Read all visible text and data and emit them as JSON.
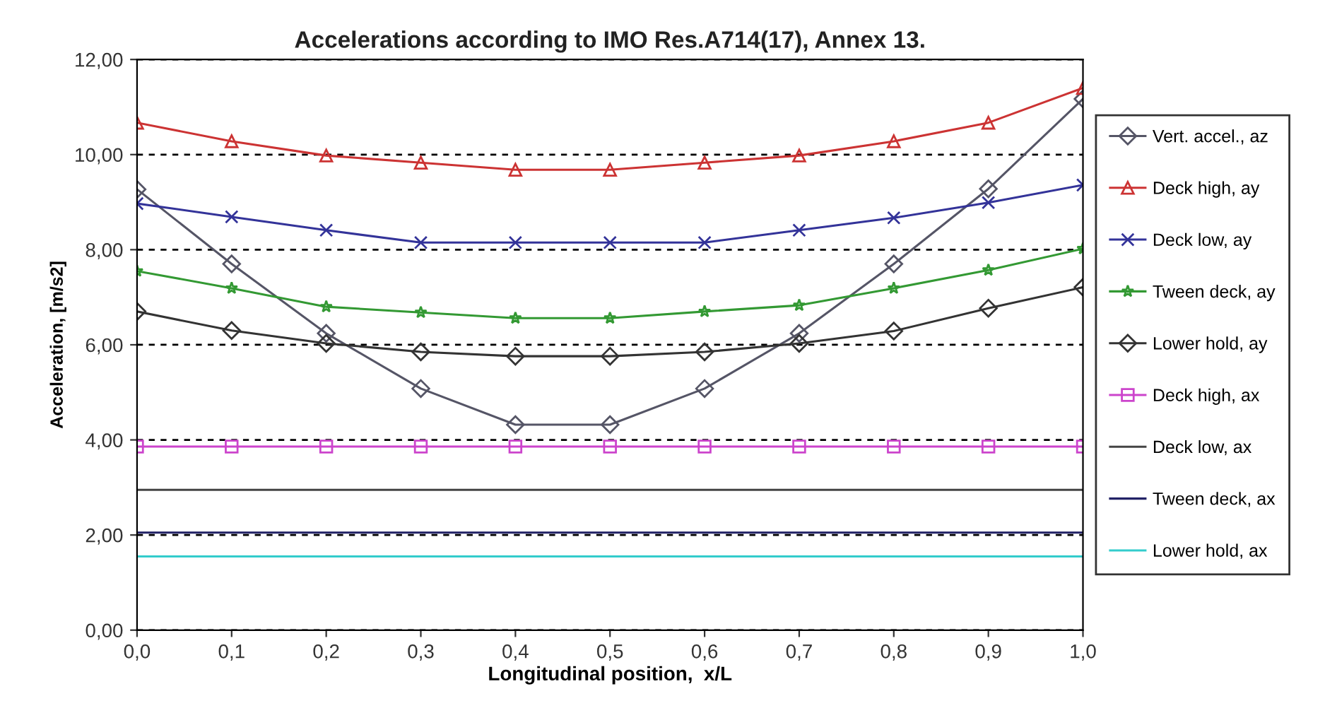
{
  "chart_data": {
    "type": "line",
    "title": "Accelerations according to IMO Res.A714(17), Annex 13.",
    "xlabel": "Longitudinal position,  x/L",
    "ylabel": "Acceleration, [m/s2]",
    "x": [
      0.0,
      0.1,
      0.2,
      0.3,
      0.4,
      0.5,
      0.6,
      0.7,
      0.8,
      0.9,
      1.0
    ],
    "series": [
      {
        "name": "Vert. accel., az",
        "color": "#555566",
        "marker": "diamond",
        "values": [
          9.27,
          7.7,
          6.24,
          5.08,
          4.32,
          4.32,
          5.08,
          6.24,
          7.7,
          9.28,
          11.17
        ]
      },
      {
        "name": "Deck high, ay",
        "color": "#cc3333",
        "marker": "triangle",
        "values": [
          10.67,
          10.28,
          9.98,
          9.83,
          9.68,
          9.68,
          9.83,
          9.98,
          10.28,
          10.67,
          11.4
        ]
      },
      {
        "name": "Deck low, ay",
        "color": "#333399",
        "marker": "cross",
        "values": [
          8.97,
          8.69,
          8.41,
          8.15,
          8.15,
          8.15,
          8.15,
          8.41,
          8.67,
          8.99,
          9.36
        ]
      },
      {
        "name": "Tween deck, ay",
        "color": "#339933",
        "marker": "star",
        "values": [
          7.55,
          7.19,
          6.8,
          6.68,
          6.56,
          6.56,
          6.7,
          6.83,
          7.19,
          7.57,
          8.02
        ]
      },
      {
        "name": "Lower hold, ay",
        "color": "#333333",
        "marker": "diamond",
        "values": [
          6.7,
          6.3,
          6.03,
          5.85,
          5.76,
          5.76,
          5.85,
          6.03,
          6.29,
          6.77,
          7.21
        ]
      },
      {
        "name": "Deck high, ax",
        "color": "#cc44cc",
        "marker": "square",
        "values": [
          3.86,
          3.86,
          3.86,
          3.86,
          3.86,
          3.86,
          3.86,
          3.86,
          3.86,
          3.86,
          3.86
        ]
      },
      {
        "name": "Deck low, ax",
        "color": "#444444",
        "marker": "none",
        "values": [
          2.95,
          2.95,
          2.95,
          2.95,
          2.95,
          2.95,
          2.95,
          2.95,
          2.95,
          2.95,
          2.95
        ]
      },
      {
        "name": "Tween deck, ax",
        "color": "#222266",
        "marker": "none",
        "values": [
          2.05,
          2.05,
          2.05,
          2.05,
          2.05,
          2.05,
          2.05,
          2.05,
          2.05,
          2.05,
          2.05
        ]
      },
      {
        "name": "Lower hold, ax",
        "color": "#33cccc",
        "marker": "none",
        "values": [
          1.55,
          1.55,
          1.55,
          1.55,
          1.55,
          1.55,
          1.55,
          1.55,
          1.55,
          1.55,
          1.55
        ]
      }
    ],
    "xlim": [
      0,
      1
    ],
    "ylim": [
      0,
      12
    ],
    "xticks": [
      {
        "value": 0,
        "label": "0,0"
      },
      {
        "value": 0.1,
        "label": "0,1"
      },
      {
        "value": 0.2,
        "label": "0,2"
      },
      {
        "value": 0.3,
        "label": "0,3"
      },
      {
        "value": 0.4,
        "label": "0,4"
      },
      {
        "value": 0.5,
        "label": "0,5"
      },
      {
        "value": 0.6,
        "label": "0,6"
      },
      {
        "value": 0.7,
        "label": "0,7"
      },
      {
        "value": 0.8,
        "label": "0,8"
      },
      {
        "value": 0.9,
        "label": "0,9"
      },
      {
        "value": 1.0,
        "label": "1,0"
      }
    ],
    "yticks": [
      {
        "value": 0,
        "label": "0,00"
      },
      {
        "value": 2,
        "label": "2,00"
      },
      {
        "value": 4,
        "label": "4,00"
      },
      {
        "value": 6,
        "label": "6,00"
      },
      {
        "value": 8,
        "label": "8,00"
      },
      {
        "value": 10,
        "label": "10,00"
      },
      {
        "value": 12,
        "label": "12,00"
      }
    ],
    "grid": "y",
    "legend": "right",
    "line_style": "solid"
  }
}
